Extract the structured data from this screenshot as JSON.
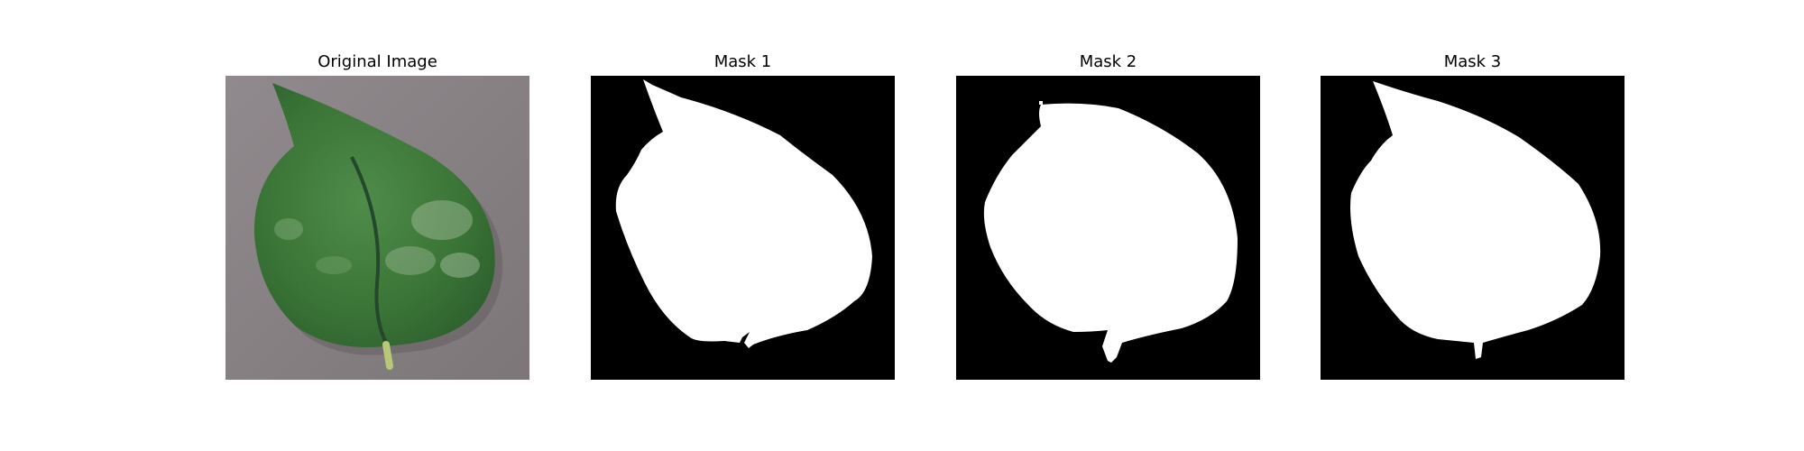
{
  "figure": {
    "panels": [
      {
        "id": "original",
        "title": "Original Image",
        "kind": "photo",
        "background": "#8c8588",
        "leaf_color": "#3d7a3a"
      },
      {
        "id": "mask1",
        "title": "Mask 1",
        "kind": "mask",
        "background": "#000000",
        "fill": "#ffffff"
      },
      {
        "id": "mask2",
        "title": "Mask 2",
        "kind": "mask",
        "background": "#000000",
        "fill": "#ffffff"
      },
      {
        "id": "mask3",
        "title": "Mask 3",
        "kind": "mask",
        "background": "#000000",
        "fill": "#ffffff"
      }
    ]
  }
}
